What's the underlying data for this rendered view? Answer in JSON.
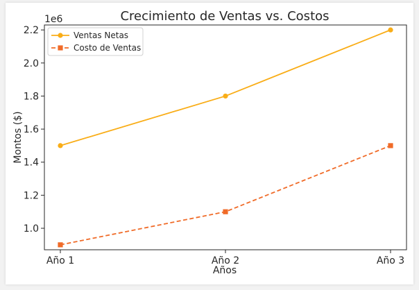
{
  "chart_data": {
    "type": "line",
    "title": "Crecimiento de Ventas vs. Costos",
    "xlabel": "Años",
    "ylabel": "Montos ($)",
    "y_offset_label": "1e6",
    "categories": [
      "Año 1",
      "Año 2",
      "Año 3"
    ],
    "series": [
      {
        "name": "Ventas Netas",
        "values": [
          1500000,
          1800000,
          2200000
        ],
        "color": "#f9ad17",
        "line_style": "solid",
        "marker": "circle"
      },
      {
        "name": "Costo de Ventas",
        "values": [
          900000,
          1100000,
          1500000
        ],
        "color": "#f06b28",
        "line_style": "dashed",
        "marker": "square"
      }
    ],
    "ylim": [
      870000,
      2230000
    ],
    "yticks": [
      1000000,
      1200000,
      1400000,
      1600000,
      1800000,
      2000000,
      2200000
    ],
    "ytick_labels": [
      "1.0",
      "1.2",
      "1.4",
      "1.6",
      "1.8",
      "2.0",
      "2.2"
    ],
    "grid": false,
    "legend_position": "top-left"
  }
}
